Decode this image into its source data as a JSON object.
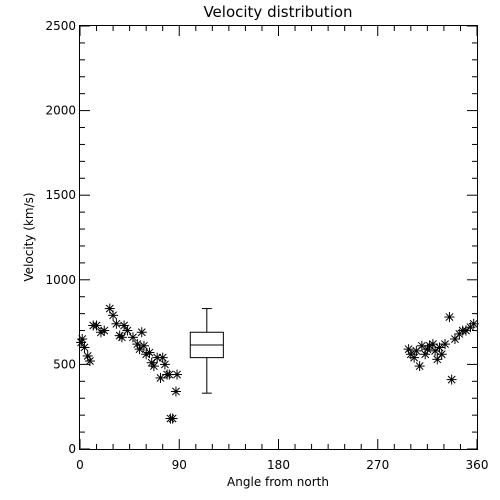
{
  "chart_data": {
    "type": "scatter",
    "title": "Velocity distribution",
    "xlabel": "Angle from north",
    "ylabel": "Velocity (km/s)",
    "xlim": [
      0,
      360
    ],
    "ylim": [
      0,
      2500
    ],
    "x_ticks": [
      0,
      90,
      180,
      270,
      360
    ],
    "y_ticks": [
      0,
      500,
      1000,
      1500,
      2000,
      2500
    ],
    "grid": false,
    "marker": "asterisk",
    "points": [
      {
        "x": 1,
        "y": 630
      },
      {
        "x": 2,
        "y": 650
      },
      {
        "x": 4,
        "y": 600
      },
      {
        "x": 7,
        "y": 550
      },
      {
        "x": 9,
        "y": 520
      },
      {
        "x": 12,
        "y": 730
      },
      {
        "x": 15,
        "y": 730
      },
      {
        "x": 19,
        "y": 690
      },
      {
        "x": 22,
        "y": 700
      },
      {
        "x": 27,
        "y": 830
      },
      {
        "x": 30,
        "y": 790
      },
      {
        "x": 33,
        "y": 740
      },
      {
        "x": 36,
        "y": 670
      },
      {
        "x": 38,
        "y": 660
      },
      {
        "x": 40,
        "y": 730
      },
      {
        "x": 43,
        "y": 700
      },
      {
        "x": 48,
        "y": 660
      },
      {
        "x": 52,
        "y": 620
      },
      {
        "x": 54,
        "y": 590
      },
      {
        "x": 56,
        "y": 690
      },
      {
        "x": 58,
        "y": 610
      },
      {
        "x": 60,
        "y": 560
      },
      {
        "x": 63,
        "y": 570
      },
      {
        "x": 65,
        "y": 510
      },
      {
        "x": 67,
        "y": 490
      },
      {
        "x": 70,
        "y": 540
      },
      {
        "x": 73,
        "y": 420
      },
      {
        "x": 75,
        "y": 540
      },
      {
        "x": 77,
        "y": 500
      },
      {
        "x": 79,
        "y": 440
      },
      {
        "x": 81,
        "y": 440
      },
      {
        "x": 82,
        "y": 180
      },
      {
        "x": 84,
        "y": 180
      },
      {
        "x": 87,
        "y": 340
      },
      {
        "x": 88,
        "y": 440
      },
      {
        "x": 298,
        "y": 590
      },
      {
        "x": 300,
        "y": 560
      },
      {
        "x": 303,
        "y": 540
      },
      {
        "x": 305,
        "y": 580
      },
      {
        "x": 308,
        "y": 490
      },
      {
        "x": 310,
        "y": 610
      },
      {
        "x": 313,
        "y": 560
      },
      {
        "x": 315,
        "y": 590
      },
      {
        "x": 317,
        "y": 610
      },
      {
        "x": 320,
        "y": 620
      },
      {
        "x": 322,
        "y": 580
      },
      {
        "x": 324,
        "y": 530
      },
      {
        "x": 326,
        "y": 600
      },
      {
        "x": 328,
        "y": 560
      },
      {
        "x": 331,
        "y": 620
      },
      {
        "x": 335,
        "y": 780
      },
      {
        "x": 337,
        "y": 410
      },
      {
        "x": 340,
        "y": 650
      },
      {
        "x": 344,
        "y": 680
      },
      {
        "x": 347,
        "y": 700
      },
      {
        "x": 350,
        "y": 700
      },
      {
        "x": 354,
        "y": 720
      },
      {
        "x": 357,
        "y": 740
      }
    ],
    "boxplot": {
      "x": 115,
      "half_width_deg": 15,
      "min": 330,
      "q1": 540,
      "median": 615,
      "q3": 690,
      "max": 830
    }
  }
}
